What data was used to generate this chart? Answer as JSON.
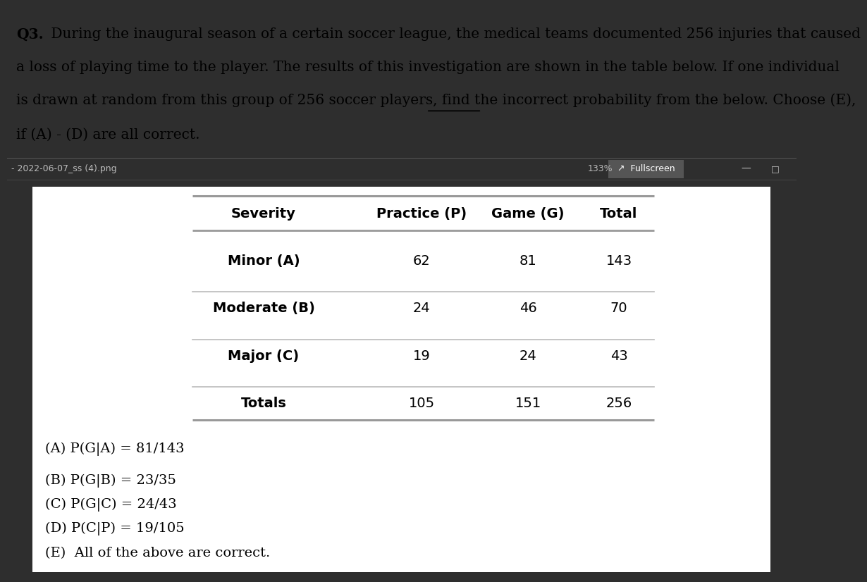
{
  "question_lines": [
    "Q3. During the inaugural season of a certain soccer league, the medical teams documented 256 injuries that caused",
    "a loss of playing time to the player. The results of this investigation are shown in the table below. If one individual",
    "is drawn at random from this group of 256 soccer players, find the incorrect probability from the below. Choose (E),",
    "if (A) - (D) are all correct."
  ],
  "line2_before": "is drawn at random from this group of 256 soccer players, find the ",
  "line2_underline": "incorrect",
  "line2_after": " probability from the below. Choose (E),",
  "toolbar_left": "- 2022-06-07_ss (4).png",
  "toolbar_133": "133%",
  "toolbar_fullscreen": "↗  Fullscreen",
  "toolbar_minus": "—",
  "toolbar_square": "□",
  "table_headers": [
    "Severity",
    "Practice (P)",
    "Game (G)",
    "Total"
  ],
  "table_rows": [
    [
      "Minor (A)",
      "62",
      "81",
      "143"
    ],
    [
      "Moderate (B)",
      "24",
      "46",
      "70"
    ],
    [
      "Major (C)",
      "19",
      "24",
      "43"
    ],
    [
      "Totals",
      "105",
      "151",
      "256"
    ]
  ],
  "answers": [
    "(A) P(G|A) = 81/143",
    "(B) P(G|B) = 23/35",
    "(C) P(G|C) = 24/43",
    "(D) P(C|P) = 19/105",
    "(E)  All of the above are correct."
  ],
  "q_box_color": "#ffffff",
  "toolbar_bg": "#2e2e2e",
  "content_bg": "#e0e0e0",
  "white_panel_bg": "#ffffff",
  "text_black": "#000000",
  "toolbar_text_color": "#bbbbbb",
  "line_color_thick": "#999999",
  "line_color_thin": "#bbbbbb",
  "q_fontsize": 14.5,
  "table_fontsize": 14,
  "answer_fontsize": 14
}
